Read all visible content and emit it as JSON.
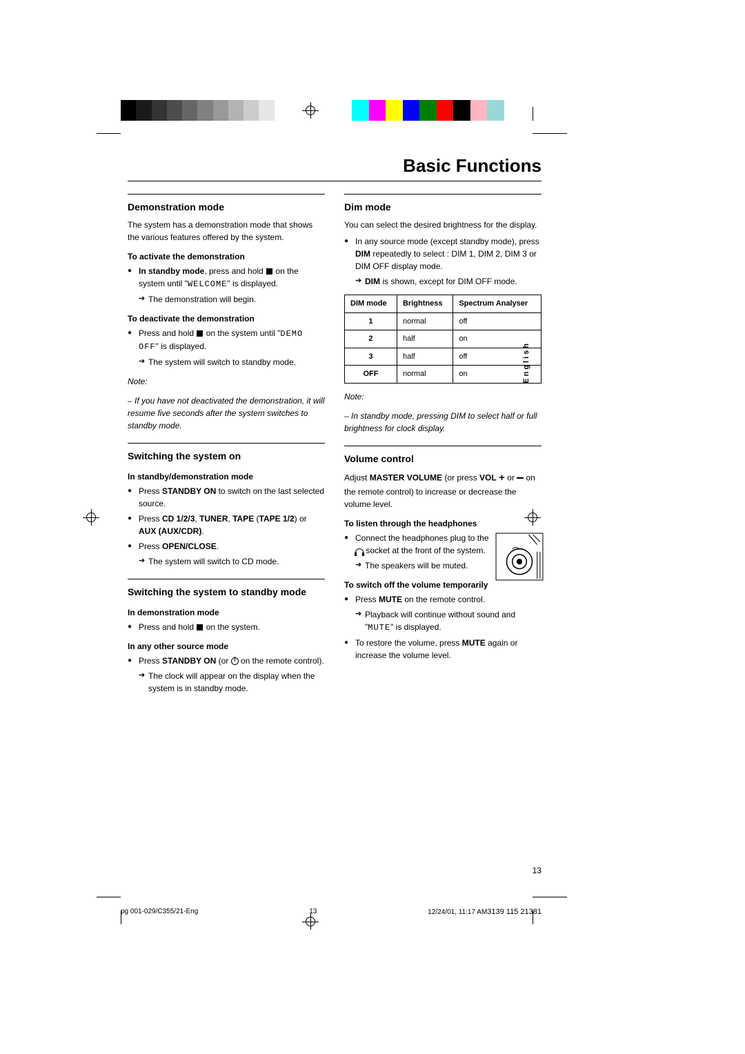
{
  "page_title": "Basic Functions",
  "lang_tab": "English",
  "page_number": "13",
  "color_bars": {
    "left": [
      "#000000",
      "#1a1a1a",
      "#333333",
      "#4d4d4d",
      "#666666",
      "#808080",
      "#999999",
      "#b3b3b3",
      "#cccccc",
      "#e6e6e6",
      "#ffffff"
    ],
    "right": [
      "#00ffff",
      "#ff00ff",
      "#ffff00",
      "#0000ff",
      "#008000",
      "#ff0000",
      "#000000",
      "#ffb6c1",
      "#98d8d8",
      "#ffffff"
    ]
  },
  "left_col": {
    "demo": {
      "h": "Demonstration mode",
      "intro": "The system has a demonstration mode that shows the various features offered by the system.",
      "activate_h": "To activate the demonstration",
      "activate_b1a": "In standby mode",
      "activate_b1b": ", press and hold ",
      "activate_b1c": " on the system until \"",
      "activate_b1d": "WELCOME",
      "activate_b1e": "\" is displayed.",
      "activate_a1": "The demonstration will begin.",
      "deactivate_h": "To deactivate the demonstration",
      "deactivate_b1a": "Press and hold ",
      "deactivate_b1b": " on the system until \"",
      "deactivate_b1c": "DEMO OFF",
      "deactivate_b1d": "\" is displayed.",
      "deactivate_a1": "The system will switch to standby mode.",
      "note_label": "Note:",
      "note": "– If you have not deactivated the demonstration, it will resume five seconds after the system switches to standby mode."
    },
    "switch_on": {
      "h": "Switching the system on",
      "sub": "In standby/demonstration mode",
      "b1a": "Press ",
      "b1b": "STANDBY ON",
      "b1c": " to switch on the last selected source.",
      "b2a": "Press ",
      "b2b": "CD 1/2/3",
      "b2c": ", ",
      "b2d": "TUNER",
      "b2e": ", ",
      "b2f": "TAPE",
      "b2g": " (",
      "b2h": "TAPE 1/2",
      "b2i": ") or ",
      "b2j": "AUX (AUX/CDR)",
      "b2k": ".",
      "b3a": "Press ",
      "b3b": "OPEN/CLOSE",
      "b3c": ".",
      "a1": "The system will switch to CD mode."
    },
    "standby": {
      "h": "Switching the system to standby mode",
      "sub1": "In demonstration mode",
      "b1a": "Press and hold ",
      "b1b": " on the system.",
      "sub2": "In any other source mode",
      "b2a": "Press ",
      "b2b": "STANDBY ON",
      "b2c": " (or ",
      "b2d": " on the remote control).",
      "a1": "The clock will appear on the display when the system is in standby mode."
    }
  },
  "right_col": {
    "dim": {
      "h": "Dim mode",
      "intro": "You can select the desired brightness for the display.",
      "b1a": "In any source mode (except standby mode), press ",
      "b1b": "DIM",
      "b1c": " repeatedly to select : DIM 1, DIM 2, DIM 3 or DIM OFF display mode.",
      "a1a": "DIM",
      "a1b": " is shown, except for DIM OFF mode.",
      "table": {
        "headers": [
          "DIM mode",
          "Brightness",
          "Spectrum Analyser"
        ],
        "rows": [
          [
            "1",
            "normal",
            "off"
          ],
          [
            "2",
            "half",
            "on"
          ],
          [
            "3",
            "half",
            "off"
          ],
          [
            "OFF",
            "normal",
            "on"
          ]
        ]
      },
      "note_label": "Note:",
      "note": "– In standby mode, pressing DIM to select half or full brightness for clock display."
    },
    "volume": {
      "h": "Volume control",
      "intro_a": "Adjust ",
      "intro_b": "MASTER VOLUME",
      "intro_c": " (or press ",
      "intro_d": "VOL",
      "intro_e": " or ",
      "intro_f": " on the remote control) to increase or decrease the volume level.",
      "hp_h": "To listen through the headphones",
      "hp_b1a": "Connect the headphones plug to the ",
      "hp_b1b": " socket at the front of the system.",
      "hp_a1": "The speakers will be muted.",
      "mute_h": "To switch off the volume temporarily",
      "mute_b1a": "Press ",
      "mute_b1b": "MUTE",
      "mute_b1c": " on the remote control.",
      "mute_a1a": "Playback will continue without sound and \"",
      "mute_a1b": "MUTE",
      "mute_a1c": "\" is displayed.",
      "mute_b2a": "To restore the volume, press ",
      "mute_b2b": "MUTE",
      "mute_b2c": " again or increase the volume level."
    }
  },
  "footer": {
    "file": "pg 001-029/C355/21-Eng",
    "pg": "13",
    "date": "12/24/01, 11:17 AM",
    "docnum": "3139 115 21381"
  }
}
